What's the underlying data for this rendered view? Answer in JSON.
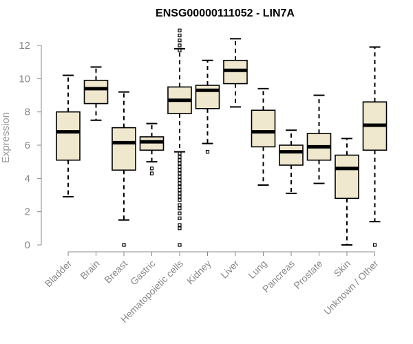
{
  "chart_data": {
    "type": "boxplot",
    "title": "ENSG00000111052 - LIN7A",
    "ylabel": "Expression",
    "xlabel": "",
    "ylim": [
      0,
      12
    ],
    "yticks": [
      0,
      2,
      4,
      6,
      8,
      10,
      12
    ],
    "categories": [
      "Bladder",
      "Brain",
      "Breast",
      "Gastric",
      "Hematopoietic cells",
      "Kidney",
      "Liver",
      "Lung",
      "Pancreas",
      "Prostate",
      "Skin",
      "Unknown / Other"
    ],
    "boxes": [
      {
        "category": "Bladder",
        "whisker_low": 2.9,
        "q1": 5.1,
        "median": 6.8,
        "q3": 8.0,
        "whisker_high": 10.2,
        "outliers": []
      },
      {
        "category": "Brain",
        "whisker_low": 7.5,
        "q1": 8.5,
        "median": 9.4,
        "q3": 9.9,
        "whisker_high": 10.7,
        "outliers": []
      },
      {
        "category": "Breast",
        "whisker_low": 1.5,
        "q1": 4.5,
        "median": 6.15,
        "q3": 7.05,
        "whisker_high": 9.2,
        "outliers": [
          0.0
        ]
      },
      {
        "category": "Gastric",
        "whisker_low": 5.0,
        "q1": 5.7,
        "median": 6.2,
        "q3": 6.5,
        "whisker_high": 7.3,
        "outliers": [
          4.6,
          4.3
        ]
      },
      {
        "category": "Hematopoietic cells",
        "whisker_low": 5.6,
        "q1": 7.9,
        "median": 8.7,
        "q3": 9.5,
        "whisker_high": 11.8,
        "outliers": [
          12.9,
          12.6,
          12.3,
          12.0,
          11.7,
          5.5,
          5.3,
          5.1,
          4.9,
          4.7,
          4.5,
          4.3,
          4.1,
          3.9,
          3.7,
          3.5,
          3.3,
          3.1,
          2.9,
          2.7,
          2.4,
          2.2,
          1.9,
          1.6,
          1.2,
          1.0,
          0.0
        ]
      },
      {
        "category": "Kidney",
        "whisker_low": 6.1,
        "q1": 8.2,
        "median": 9.3,
        "q3": 9.6,
        "whisker_high": 11.1,
        "outliers": [
          5.6
        ]
      },
      {
        "category": "Liver",
        "whisker_low": 8.3,
        "q1": 9.7,
        "median": 10.5,
        "q3": 11.1,
        "whisker_high": 12.4,
        "outliers": []
      },
      {
        "category": "Lung",
        "whisker_low": 3.6,
        "q1": 5.9,
        "median": 6.8,
        "q3": 8.1,
        "whisker_high": 9.4,
        "outliers": []
      },
      {
        "category": "Pancreas",
        "whisker_low": 3.1,
        "q1": 4.8,
        "median": 5.6,
        "q3": 6.0,
        "whisker_high": 6.9,
        "outliers": []
      },
      {
        "category": "Prostate",
        "whisker_low": 3.7,
        "q1": 5.1,
        "median": 5.9,
        "q3": 6.7,
        "whisker_high": 9.0,
        "outliers": []
      },
      {
        "category": "Skin",
        "whisker_low": 0.0,
        "q1": 2.8,
        "median": 4.6,
        "q3": 5.4,
        "whisker_high": 6.4,
        "outliers": []
      },
      {
        "category": "Unknown / Other",
        "whisker_low": 1.4,
        "q1": 5.7,
        "median": 7.2,
        "q3": 8.6,
        "whisker_high": 11.9,
        "outliers": [
          0.0
        ]
      }
    ],
    "box_fill": "#efe8cf",
    "grid": false
  }
}
